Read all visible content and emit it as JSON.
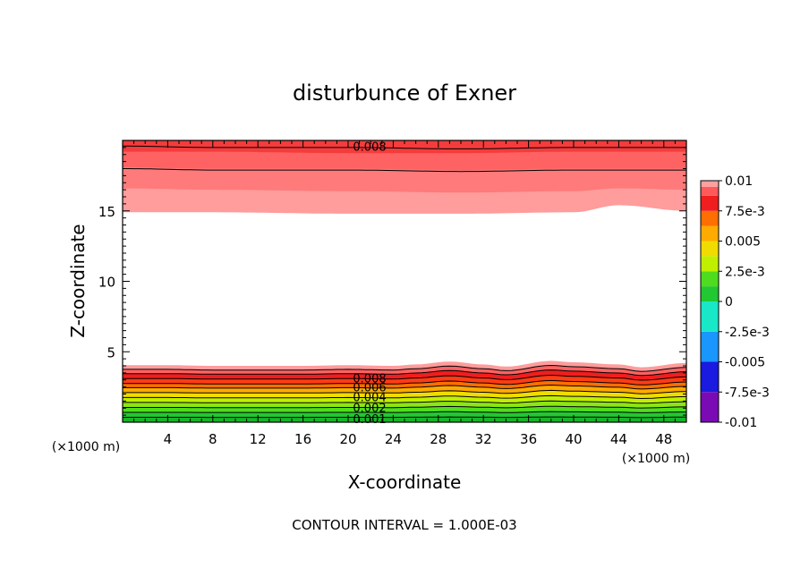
{
  "chart_data": {
    "type": "heatmap",
    "subtype": "filled-contour",
    "title": "disturbunce of Exner",
    "xlabel": "X-coordinate",
    "ylabel": "Z-coordinate",
    "x_unit": "(×1000 m)",
    "y_unit": "(×1000 m)",
    "footer": "CONTOUR INTERVAL = 1.000E-03",
    "xlim": [
      0,
      50
    ],
    "ylim": [
      0,
      20
    ],
    "x_ticks": [
      4,
      8,
      12,
      16,
      20,
      24,
      28,
      32,
      36,
      40,
      44,
      48
    ],
    "y_ticks": [
      5,
      10,
      15
    ],
    "colorbar": {
      "labels": [
        "0.01",
        "7.5e-3",
        "0.005",
        "2.5e-3",
        "0",
        "-2.5e-3",
        "-0.005",
        "-7.5e-3",
        "-0.01"
      ],
      "bands": [
        {
          "from": -0.01,
          "to": -0.0075,
          "color": "#7a0ab4"
        },
        {
          "from": -0.0075,
          "to": -0.005,
          "color": "#1a1ae0"
        },
        {
          "from": -0.005,
          "to": -0.0025,
          "color": "#1a96ff"
        },
        {
          "from": -0.0025,
          "to": 0,
          "color": "#18e8c8"
        },
        {
          "from": 0,
          "to": 0.00125,
          "color": "#22c832"
        },
        {
          "from": 0.00125,
          "to": 0.0025,
          "color": "#50dc1e"
        },
        {
          "from": 0.0025,
          "to": 0.00375,
          "color": "#c0f000"
        },
        {
          "from": 0.00375,
          "to": 0.005,
          "color": "#f0dc00"
        },
        {
          "from": 0.005,
          "to": 0.00625,
          "color": "#ffaa00"
        },
        {
          "from": 0.00625,
          "to": 0.0075,
          "color": "#ff6e00"
        },
        {
          "from": 0.0075,
          "to": 0.00875,
          "color": "#f01e1e"
        },
        {
          "from": 0.00875,
          "to": 0.0095,
          "color": "#ff5a5a"
        },
        {
          "from": 0.0095,
          "to": 0.01,
          "color": "#ffa0a0"
        }
      ]
    },
    "upper_region": {
      "bands": [
        {
          "z_bottom": [
            14.9,
            14.9,
            14.8,
            14.8,
            14.9,
            15.4,
            15.0
          ],
          "color": "#ff9c9c"
        },
        {
          "z_bottom": [
            16.6,
            16.5,
            16.4,
            16.3,
            16.4,
            16.6,
            16.5
          ],
          "color": "#ff7a7a"
        },
        {
          "z_bottom": [
            18.1,
            18.0,
            18.0,
            17.9,
            18.0,
            18.0,
            18.0
          ],
          "color": "#ff6262"
        },
        {
          "z_bottom": [
            19.2,
            19.2,
            19.1,
            19.1,
            19.2,
            19.2,
            19.2
          ],
          "color": "#f53c3c"
        }
      ],
      "band_x": [
        0,
        8,
        20,
        30,
        40,
        44,
        50
      ],
      "contour_z": [
        18.0,
        19.6
      ],
      "labels": [
        {
          "x": 20,
          "z": 19.6,
          "text": "0.008"
        }
      ]
    },
    "lower_region": {
      "profile_x": [
        0,
        4,
        8,
        12,
        16,
        20,
        24,
        26,
        29,
        32,
        34,
        38,
        40,
        44,
        46,
        50
      ],
      "profile_dz": [
        0.0,
        0.0,
        -0.05,
        -0.05,
        -0.05,
        0.0,
        -0.05,
        0.05,
        0.25,
        0.05,
        -0.1,
        0.3,
        0.2,
        0.05,
        -0.15,
        0.15
      ],
      "layers": [
        {
          "z": 4.05,
          "color": "#ff9c9c"
        },
        {
          "z": 3.75,
          "color": "#ff6262"
        },
        {
          "z": 3.45,
          "color": "#f01e1e"
        },
        {
          "z": 3.1,
          "color": "#ff3c14"
        },
        {
          "z": 2.75,
          "color": "#ff6e00"
        },
        {
          "z": 2.45,
          "color": "#ffaa00"
        },
        {
          "z": 2.1,
          "color": "#f0dc00"
        },
        {
          "z": 1.75,
          "color": "#c0f000"
        },
        {
          "z": 1.4,
          "color": "#8ce614"
        },
        {
          "z": 1.05,
          "color": "#50dc1e"
        },
        {
          "z": 0.7,
          "color": "#22c832"
        },
        {
          "z": 0.35,
          "color": "#18b428"
        }
      ],
      "contour_z": [
        3.75,
        3.45,
        3.1,
        2.75,
        2.45,
        2.1,
        1.75,
        1.4,
        1.05,
        0.7,
        0.35
      ],
      "labels": [
        {
          "x": 20,
          "z": 3.15,
          "text": "0.008"
        },
        {
          "x": 20,
          "z": 2.5,
          "text": "0.006"
        },
        {
          "x": 20,
          "z": 1.8,
          "text": "0.004"
        },
        {
          "x": 20,
          "z": 1.05,
          "text": "0.002"
        },
        {
          "x": 20,
          "z": 0.25,
          "text": "0.001"
        }
      ]
    }
  }
}
